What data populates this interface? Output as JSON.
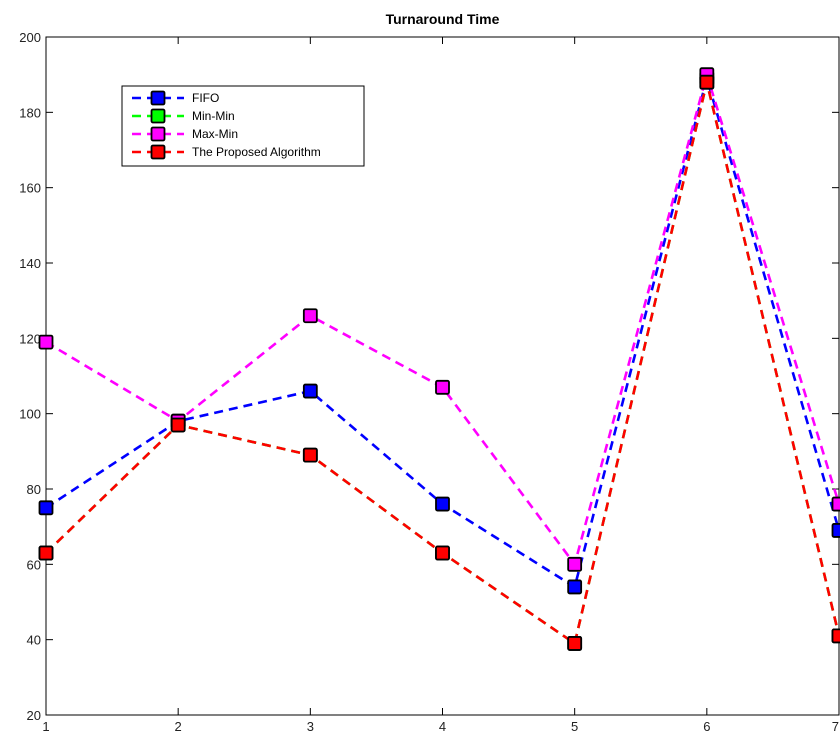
{
  "chart_data": {
    "type": "line",
    "title": "Turnaround Time",
    "xlabel": "",
    "ylabel": "",
    "x": [
      1,
      2,
      3,
      4,
      5,
      6,
      7
    ],
    "xlim": [
      1,
      7
    ],
    "ylim": [
      20,
      200
    ],
    "xticks": [
      1,
      2,
      3,
      4,
      5,
      6,
      7
    ],
    "yticks": [
      20,
      40,
      60,
      80,
      100,
      120,
      140,
      160,
      180,
      200
    ],
    "grid": false,
    "legend_position": "top-left",
    "series": [
      {
        "name": "FIFO",
        "color": "#0000ff",
        "values": [
          75,
          98,
          106,
          76,
          54,
          189,
          69
        ]
      },
      {
        "name": "Min-Min",
        "color": "#00ff00",
        "values": [
          63,
          97,
          89,
          63,
          39,
          188,
          41
        ]
      },
      {
        "name": "Max-Min",
        "color": "#ff00ff",
        "values": [
          119,
          98,
          126,
          107,
          60,
          190,
          76
        ]
      },
      {
        "name": "The Proposed Algorithm",
        "color": "#ff0000",
        "values": [
          63,
          97,
          89,
          63,
          39,
          188,
          41
        ]
      }
    ]
  }
}
